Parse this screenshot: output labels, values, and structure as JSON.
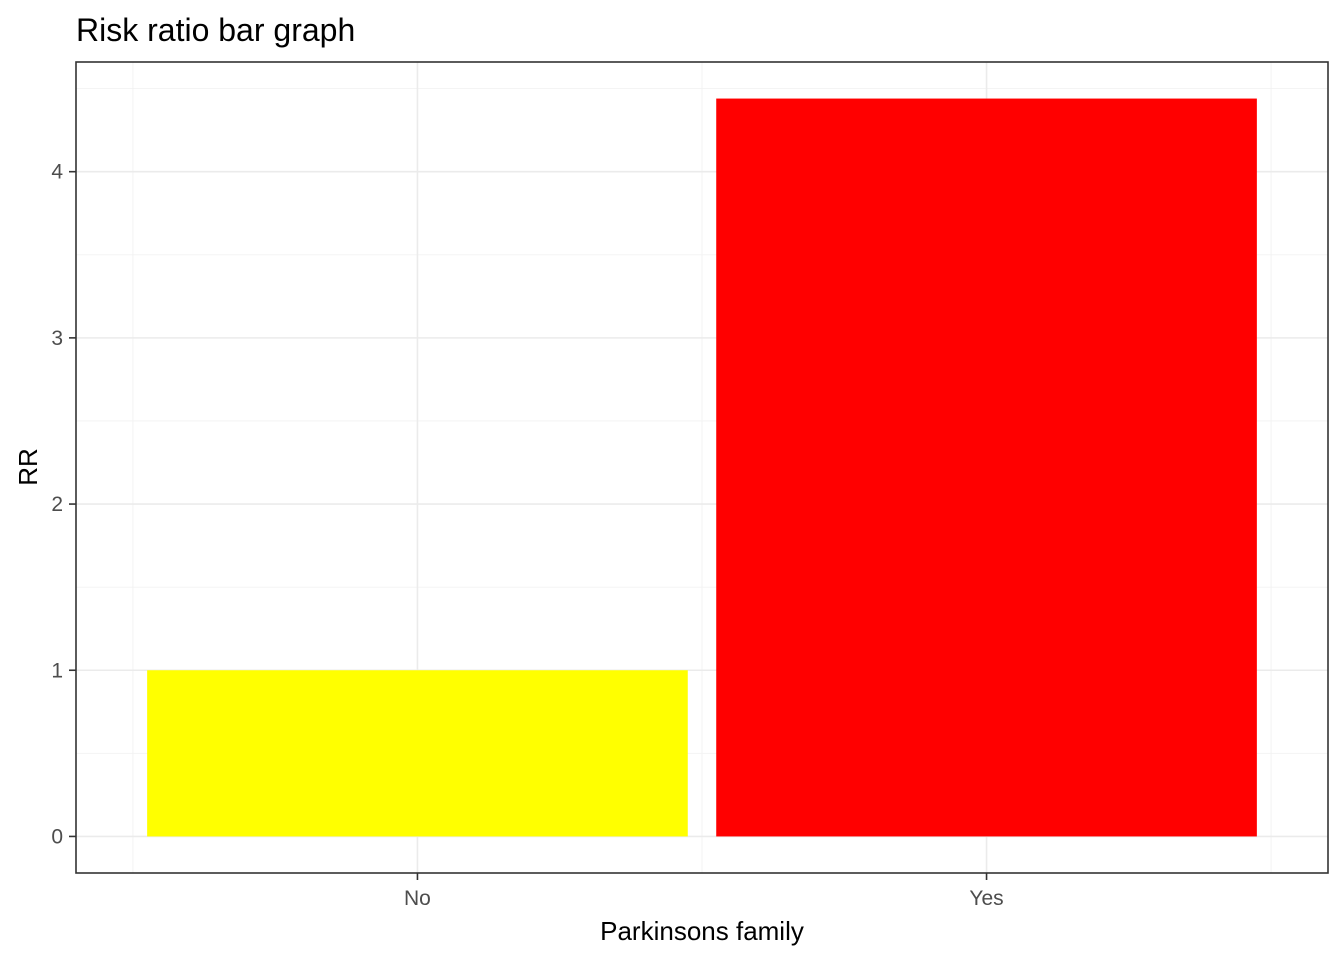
{
  "chart_data": {
    "type": "bar",
    "title": "Risk ratio bar graph",
    "xlabel": "Parkinsons family",
    "ylabel": "RR",
    "categories": [
      "No",
      "Yes"
    ],
    "values": [
      1,
      4.44
    ],
    "bar_colors": [
      "#ffff00",
      "#ff0000"
    ],
    "ylim": [
      -0.22,
      4.66
    ],
    "yticks": [
      0,
      1,
      2,
      3,
      4
    ],
    "grid": true,
    "legend": "none"
  }
}
